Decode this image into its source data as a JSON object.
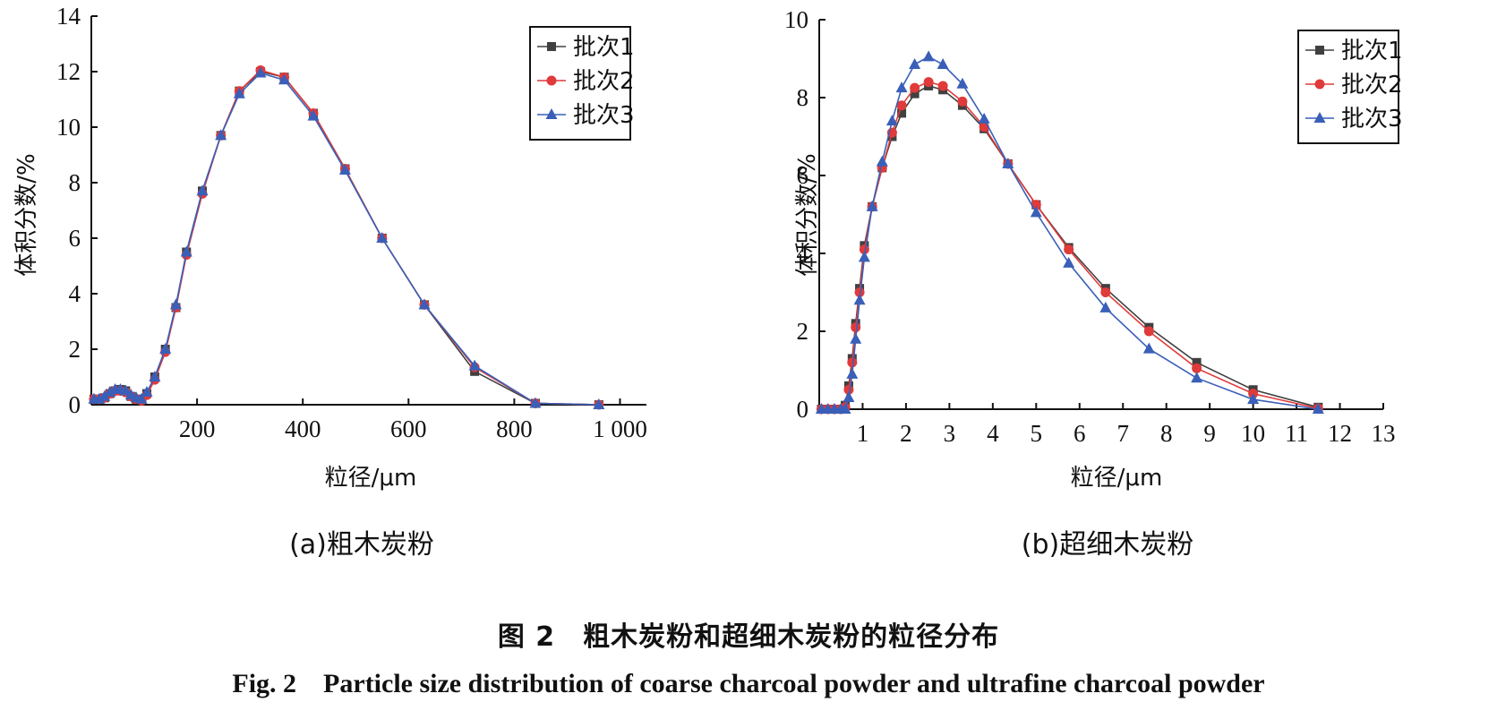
{
  "figure": {
    "caption_cn": "图 2　粗木炭粉和超细木炭粉的粒径分布",
    "caption_en": "Fig. 2　Particle size distribution of coarse charcoal powder and ultrafine charcoal powder"
  },
  "series_style": [
    {
      "color": "#404040",
      "marker": "square"
    },
    {
      "color": "#e03a3a",
      "marker": "circle"
    },
    {
      "color": "#3a5fb8",
      "marker": "triangle"
    }
  ],
  "chart_data": [
    {
      "type": "line",
      "subcaption": "(a)粗木炭粉",
      "xlabel": "粒径/μm",
      "ylabel": "体积分数/%",
      "xlim": [
        0,
        1050
      ],
      "ylim": [
        0,
        14
      ],
      "xticks": [
        200,
        400,
        600,
        800,
        1000
      ],
      "xtick_labels": [
        "200",
        "400",
        "600",
        "800",
        "1 000"
      ],
      "yticks": [
        0,
        2,
        4,
        6,
        8,
        10,
        12,
        14
      ],
      "ytick_labels": [
        "0",
        "2",
        "4",
        "6",
        "8",
        "10",
        "12",
        "14"
      ],
      "legend_position": "top-right",
      "series": [
        {
          "name": "批次1",
          "points": [
            [
              5,
              0.2
            ],
            [
              15,
              0.2
            ],
            [
              25,
              0.25
            ],
            [
              35,
              0.4
            ],
            [
              45,
              0.5
            ],
            [
              55,
              0.55
            ],
            [
              65,
              0.5
            ],
            [
              75,
              0.3
            ],
            [
              85,
              0.2
            ],
            [
              95,
              0.2
            ],
            [
              105,
              0.4
            ],
            [
              120,
              1.0
            ],
            [
              140,
              2.0
            ],
            [
              160,
              3.5
            ],
            [
              180,
              5.5
            ],
            [
              210,
              7.7
            ],
            [
              245,
              9.7
            ],
            [
              280,
              11.3
            ],
            [
              320,
              12.0
            ],
            [
              365,
              11.8
            ],
            [
              420,
              10.5
            ],
            [
              480,
              8.5
            ],
            [
              550,
              6.0
            ],
            [
              630,
              3.6
            ],
            [
              725,
              1.2
            ],
            [
              840,
              0.05
            ],
            [
              960,
              0.0
            ]
          ]
        },
        {
          "name": "批次2",
          "points": [
            [
              5,
              0.2
            ],
            [
              15,
              0.2
            ],
            [
              25,
              0.25
            ],
            [
              35,
              0.4
            ],
            [
              45,
              0.5
            ],
            [
              55,
              0.5
            ],
            [
              65,
              0.45
            ],
            [
              75,
              0.3
            ],
            [
              85,
              0.2
            ],
            [
              95,
              0.15
            ],
            [
              105,
              0.35
            ],
            [
              120,
              0.9
            ],
            [
              140,
              1.9
            ],
            [
              160,
              3.5
            ],
            [
              180,
              5.4
            ],
            [
              210,
              7.6
            ],
            [
              245,
              9.7
            ],
            [
              280,
              11.3
            ],
            [
              320,
              12.05
            ],
            [
              365,
              11.8
            ],
            [
              420,
              10.5
            ],
            [
              480,
              8.5
            ],
            [
              550,
              6.0
            ],
            [
              630,
              3.6
            ],
            [
              725,
              1.35
            ],
            [
              840,
              0.05
            ],
            [
              960,
              0.0
            ]
          ]
        },
        {
          "name": "批次3",
          "points": [
            [
              5,
              0.2
            ],
            [
              15,
              0.2
            ],
            [
              25,
              0.3
            ],
            [
              35,
              0.45
            ],
            [
              45,
              0.55
            ],
            [
              55,
              0.55
            ],
            [
              65,
              0.5
            ],
            [
              75,
              0.35
            ],
            [
              85,
              0.25
            ],
            [
              95,
              0.2
            ],
            [
              105,
              0.45
            ],
            [
              120,
              1.0
            ],
            [
              140,
              2.0
            ],
            [
              160,
              3.6
            ],
            [
              180,
              5.5
            ],
            [
              210,
              7.7
            ],
            [
              245,
              9.7
            ],
            [
              280,
              11.2
            ],
            [
              320,
              11.95
            ],
            [
              365,
              11.7
            ],
            [
              420,
              10.4
            ],
            [
              480,
              8.45
            ],
            [
              550,
              6.0
            ],
            [
              630,
              3.6
            ],
            [
              725,
              1.4
            ],
            [
              840,
              0.05
            ],
            [
              960,
              0.0
            ]
          ]
        }
      ]
    },
    {
      "type": "line",
      "subcaption": "(b)超细木炭粉",
      "xlabel": "粒径/μm",
      "ylabel": "体积分数/%",
      "xlim": [
        0,
        13
      ],
      "ylim": [
        0,
        10
      ],
      "xticks": [
        1,
        2,
        3,
        4,
        5,
        6,
        7,
        8,
        9,
        10,
        11,
        12,
        13
      ],
      "xtick_labels": [
        "1",
        "2",
        "3",
        "4",
        "5",
        "6",
        "7",
        "8",
        "9",
        "10",
        "11",
        "12",
        "13"
      ],
      "yticks": [
        0,
        2,
        4,
        6,
        8,
        10
      ],
      "ytick_labels": [
        "0",
        "2",
        "4",
        "6",
        "8",
        "10"
      ],
      "legend_position": "top-right",
      "series": [
        {
          "name": "批次1",
          "points": [
            [
              0.05,
              0.0
            ],
            [
              0.2,
              0.0
            ],
            [
              0.35,
              0.0
            ],
            [
              0.5,
              0.0
            ],
            [
              0.6,
              0.1
            ],
            [
              0.68,
              0.6
            ],
            [
              0.76,
              1.3
            ],
            [
              0.84,
              2.2
            ],
            [
              0.93,
              3.1
            ],
            [
              1.04,
              4.2
            ],
            [
              1.22,
              5.2
            ],
            [
              1.45,
              6.2
            ],
            [
              1.68,
              7.0
            ],
            [
              1.9,
              7.6
            ],
            [
              2.2,
              8.1
            ],
            [
              2.52,
              8.3
            ],
            [
              2.85,
              8.2
            ],
            [
              3.3,
              7.8
            ],
            [
              3.8,
              7.2
            ],
            [
              4.35,
              6.3
            ],
            [
              5.0,
              5.25
            ],
            [
              5.75,
              4.15
            ],
            [
              6.6,
              3.1
            ],
            [
              7.6,
              2.1
            ],
            [
              8.7,
              1.2
            ],
            [
              10.0,
              0.5
            ],
            [
              11.5,
              0.05
            ]
          ]
        },
        {
          "name": "批次2",
          "points": [
            [
              0.05,
              0.0
            ],
            [
              0.2,
              0.0
            ],
            [
              0.35,
              0.0
            ],
            [
              0.5,
              0.0
            ],
            [
              0.6,
              0.05
            ],
            [
              0.68,
              0.5
            ],
            [
              0.76,
              1.2
            ],
            [
              0.84,
              2.1
            ],
            [
              0.93,
              3.0
            ],
            [
              1.04,
              4.1
            ],
            [
              1.22,
              5.2
            ],
            [
              1.45,
              6.2
            ],
            [
              1.68,
              7.1
            ],
            [
              1.9,
              7.8
            ],
            [
              2.2,
              8.25
            ],
            [
              2.52,
              8.4
            ],
            [
              2.85,
              8.3
            ],
            [
              3.3,
              7.9
            ],
            [
              3.8,
              7.25
            ],
            [
              4.35,
              6.3
            ],
            [
              5.0,
              5.25
            ],
            [
              5.75,
              4.1
            ],
            [
              6.6,
              3.0
            ],
            [
              7.6,
              2.0
            ],
            [
              8.7,
              1.05
            ],
            [
              10.0,
              0.4
            ],
            [
              11.5,
              0.02
            ]
          ]
        },
        {
          "name": "批次3",
          "points": [
            [
              0.05,
              0.0
            ],
            [
              0.2,
              0.0
            ],
            [
              0.35,
              0.0
            ],
            [
              0.5,
              0.0
            ],
            [
              0.6,
              0.0
            ],
            [
              0.68,
              0.3
            ],
            [
              0.76,
              0.9
            ],
            [
              0.84,
              1.8
            ],
            [
              0.93,
              2.8
            ],
            [
              1.04,
              3.9
            ],
            [
              1.22,
              5.2
            ],
            [
              1.45,
              6.35
            ],
            [
              1.68,
              7.4
            ],
            [
              1.9,
              8.25
            ],
            [
              2.2,
              8.85
            ],
            [
              2.52,
              9.05
            ],
            [
              2.85,
              8.85
            ],
            [
              3.3,
              8.35
            ],
            [
              3.8,
              7.45
            ],
            [
              4.35,
              6.3
            ],
            [
              5.0,
              5.05
            ],
            [
              5.75,
              3.75
            ],
            [
              6.6,
              2.6
            ],
            [
              7.6,
              1.55
            ],
            [
              8.7,
              0.8
            ],
            [
              10.0,
              0.25
            ],
            [
              11.5,
              0.0
            ]
          ]
        }
      ]
    }
  ]
}
